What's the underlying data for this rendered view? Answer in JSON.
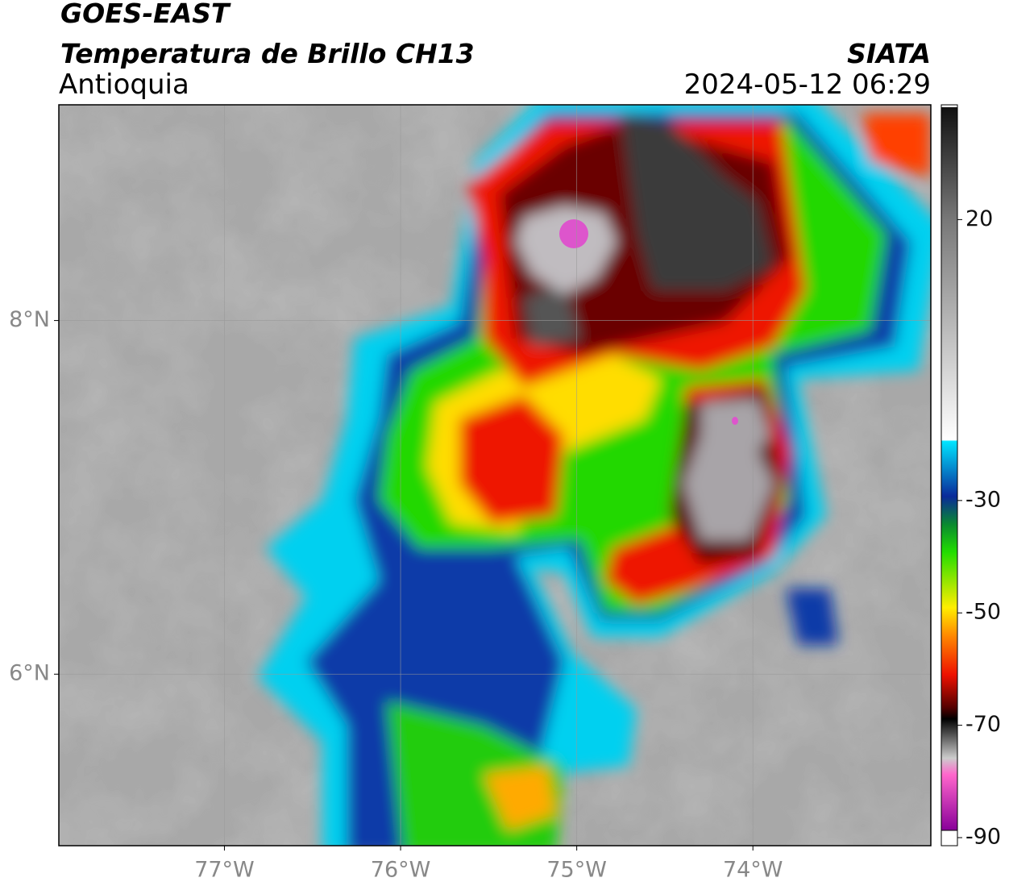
{
  "title": "GOES-EAST",
  "subtitle": "Temperatura de Brillo CH13",
  "region": "Antioquia",
  "source": "SIATA",
  "datetime": "2024-05-12 06:29",
  "map": {
    "lonlim": [
      -77.94,
      -72.99
    ],
    "latlim": [
      5.03,
      9.22
    ],
    "lonticks": [
      {
        "value": -77,
        "label": "77°W"
      },
      {
        "value": -76,
        "label": "76°W"
      },
      {
        "value": -75,
        "label": "75°W"
      },
      {
        "value": -74,
        "label": "74°W"
      }
    ],
    "latticks": [
      {
        "value": 6,
        "label": "6°N"
      },
      {
        "value": 8,
        "label": "8°N"
      }
    ],
    "grid": true
  },
  "colorbar": {
    "lim": [
      -90,
      40
    ],
    "ticks": [
      20,
      -30,
      -50,
      -70,
      -90
    ]
  }
}
